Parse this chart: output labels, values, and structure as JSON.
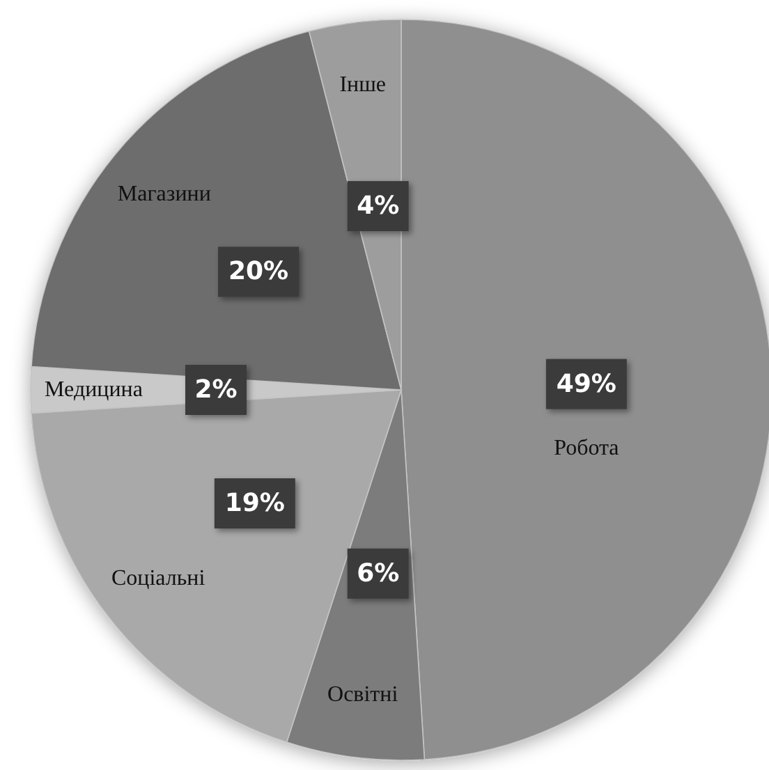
{
  "chart_data": {
    "type": "pie",
    "categories": [
      "Робота",
      "Освітні",
      "Соціальні",
      "Медицина",
      "Магазини",
      "Інше"
    ],
    "values": [
      49,
      6,
      19,
      2,
      20,
      4
    ],
    "value_labels": [
      "49%",
      "6%",
      "19%",
      "2%",
      "20%",
      "4%"
    ],
    "colors": [
      "#8f8f8f",
      "#7c7c7c",
      "#a9a9a9",
      "#c9c9c9",
      "#6d6d6d",
      "#9d9d9d"
    ]
  }
}
